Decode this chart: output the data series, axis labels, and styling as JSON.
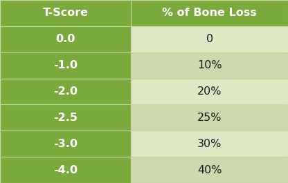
{
  "col_headers": [
    "T-Score",
    "% of Bone Loss"
  ],
  "rows": [
    [
      "0.0",
      "0"
    ],
    [
      "-1.0",
      "10%"
    ],
    [
      "-2.0",
      "20%"
    ],
    [
      "-2.5",
      "25%"
    ],
    [
      "-3.0",
      "30%"
    ],
    [
      "-4.0",
      "40%"
    ]
  ],
  "header_bg": "#7aaa3c",
  "left_col_bg": "#7aaa3c",
  "right_col_bgs": [
    "#dde8c5",
    "#ccd9af",
    "#dde8c5",
    "#ccd9af",
    "#dde8c5",
    "#ccd9af"
  ],
  "header_text_color": "#ffffff",
  "left_col_text_color": "#ffffff",
  "right_col_text_color": "#1a1a1a",
  "border_color": "#c8d8a0",
  "header_fontsize": 11.5,
  "data_fontsize": 11.5,
  "col_split": 0.455,
  "fig_width": 4.16,
  "fig_height": 2.65,
  "dpi": 100
}
